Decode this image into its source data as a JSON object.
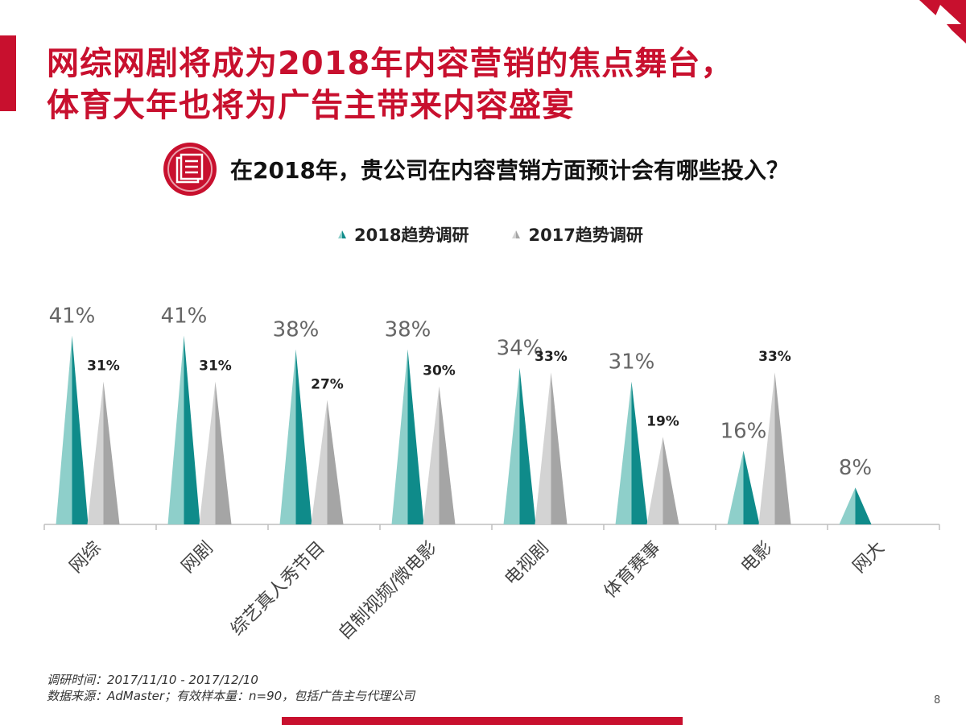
{
  "title": {
    "line1": "网综网剧将成为2018年内容营销的焦点舞台，",
    "line2": "体育大年也将为广告主带来内容盛宴"
  },
  "question": "在2018年，贵公司在内容营销方面预计会有哪些投入？",
  "icons": {
    "brand": "brand-logo-icon",
    "question": "document-list-icon"
  },
  "colors": {
    "brand_red": "#c8102e",
    "series_2018_light": "#8ecfca",
    "series_2018_dark": "#0f8b8a",
    "series_2017_light": "#d3d3d3",
    "series_2017_dark": "#a5a5a5"
  },
  "chart_data": {
    "type": "bar",
    "mark": "triangle",
    "categories": [
      "网综",
      "网剧",
      "综艺真人秀节目",
      "自制视频/微电影",
      "电视剧",
      "体育赛事",
      "电影",
      "网大"
    ],
    "series": [
      {
        "name": "2018趋势调研",
        "values": [
          41,
          41,
          38,
          38,
          34,
          31,
          16,
          8
        ],
        "labels": [
          "41%",
          "41%",
          "38%",
          "38%",
          "34%",
          "31%",
          "16%",
          "8%"
        ]
      },
      {
        "name": "2017趋势调研",
        "values": [
          31,
          31,
          27,
          30,
          33,
          19,
          33,
          null
        ],
        "labels": [
          "31%",
          "31%",
          "27%",
          "30%",
          "33%",
          "19%",
          "33%",
          null
        ]
      }
    ],
    "ylim": [
      0,
      50
    ],
    "legend_position": "top-center",
    "grid": false
  },
  "footer": {
    "survey_time": "调研时间：2017/11/10 - 2017/12/10",
    "source": "数据来源：AdMaster；有效样本量：n=90，包括广告主与代理公司"
  },
  "page_number": "8"
}
